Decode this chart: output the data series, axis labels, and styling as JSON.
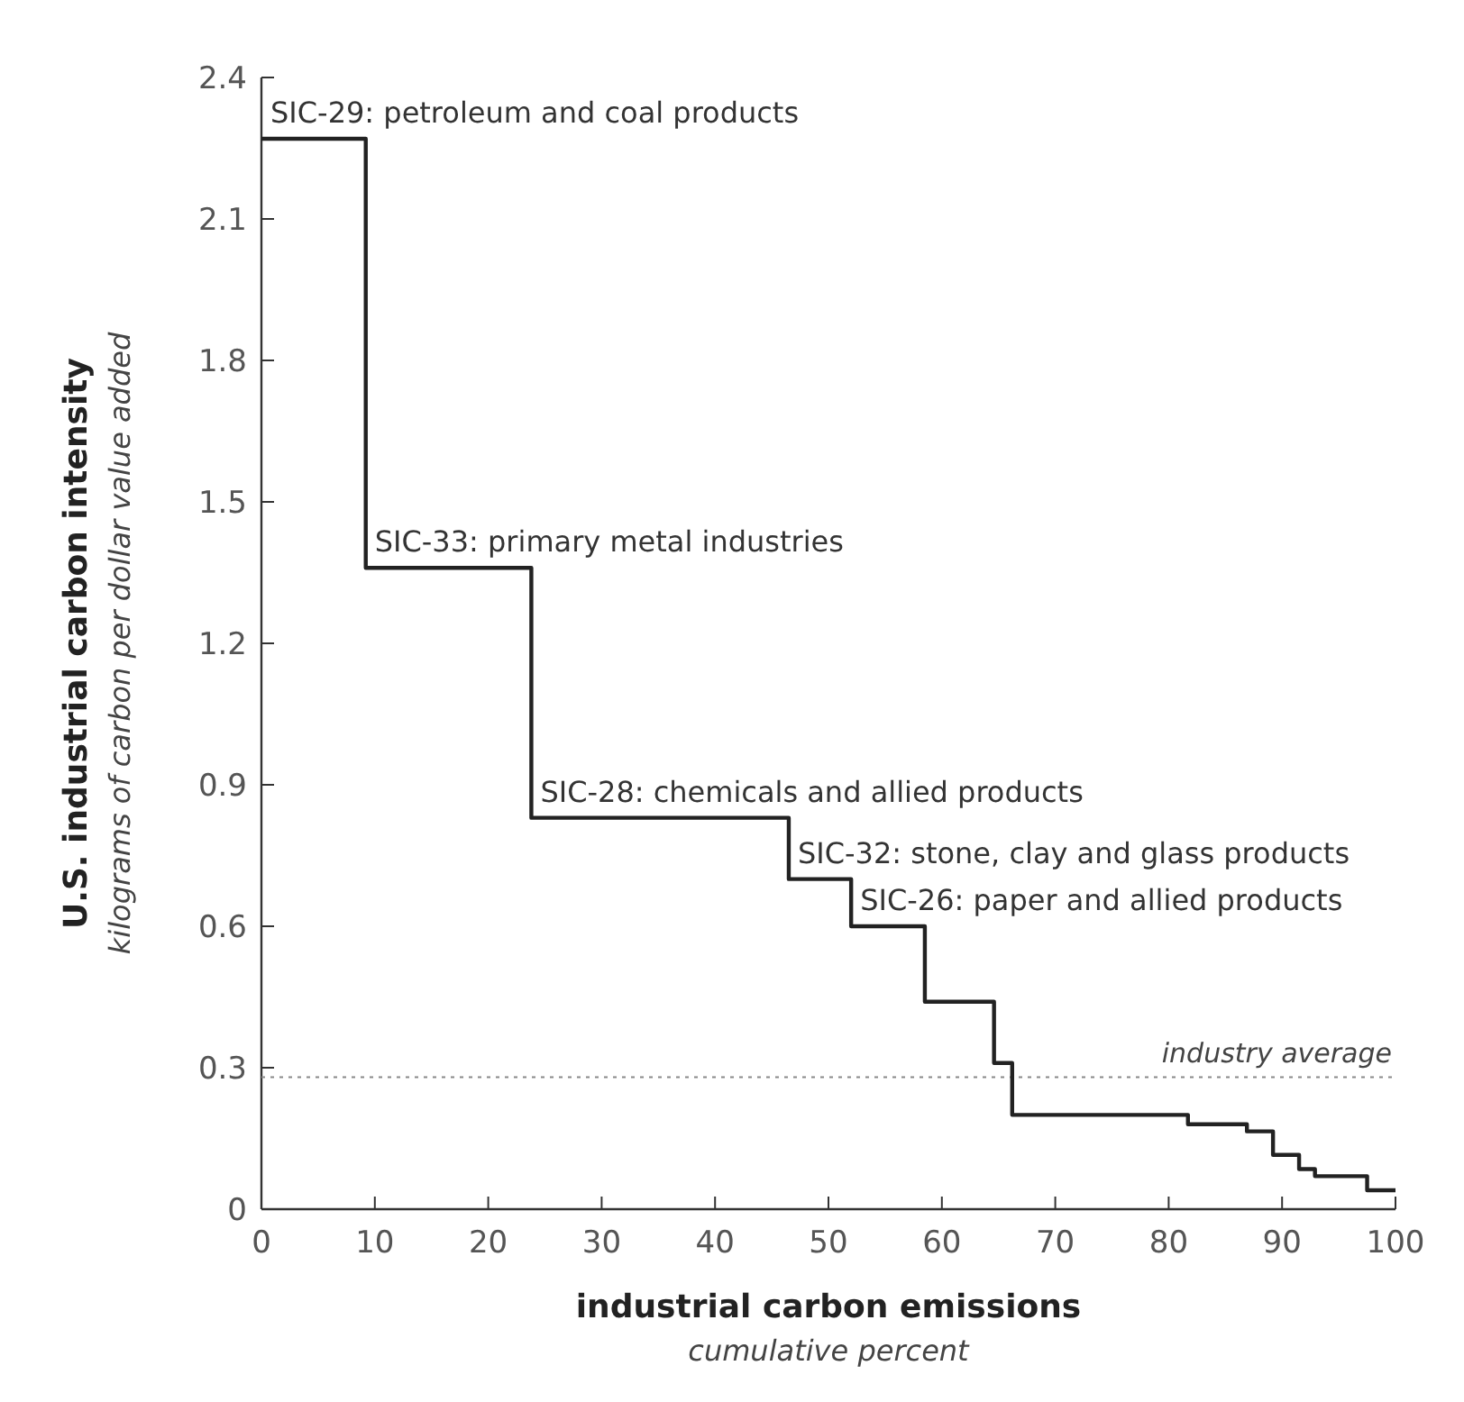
{
  "chart_data": {
    "type": "step",
    "xlabel": "industrial carbon emissions\ncumulative percent",
    "ylabel": "U.S. industrial carbon intensity\nkilograms of carbon per dollar value added",
    "xlim": [
      0,
      100
    ],
    "xticks": [
      0,
      10,
      20,
      30,
      40,
      50,
      60,
      70,
      80,
      90,
      100
    ],
    "ylim": [
      0,
      2.4
    ],
    "yticks": [
      0,
      0.3,
      0.6,
      0.9,
      1.2,
      1.5,
      1.8,
      2.1,
      2.4
    ],
    "series": [
      {
        "color": "#222222",
        "x": [
          0,
          9.2,
          23.8,
          46.5,
          52.0,
          58.5,
          64.6,
          66.2,
          81.7,
          86.9,
          89.2,
          91.5,
          92.9,
          97.5,
          100
        ],
        "values": [
          2.27,
          1.36,
          0.83,
          0.7,
          0.6,
          0.44,
          0.31,
          0.2,
          0.18,
          0.165,
          0.115,
          0.085,
          0.07,
          0.04,
          0.04
        ]
      }
    ],
    "ref_lines": [
      {
        "axis": "y",
        "value": 0.28,
        "label": "industry average",
        "line_style": "dotted",
        "color": "#888888"
      }
    ],
    "annotations": [
      {
        "text": "SIC-29: petroleum and coal products",
        "x": 0,
        "y": 2.27
      },
      {
        "text": "SIC-33: primary metal industries",
        "x": 9.2,
        "y": 1.36
      },
      {
        "text": "SIC-28: chemicals and allied products",
        "x": 23.8,
        "y": 0.83
      },
      {
        "text": "SIC-32: stone, clay and glass products",
        "x": 46.5,
        "y": 0.7
      },
      {
        "text": "SIC-26: paper and allied products",
        "x": 52.0,
        "y": 0.6
      }
    ],
    "grid": false
  }
}
